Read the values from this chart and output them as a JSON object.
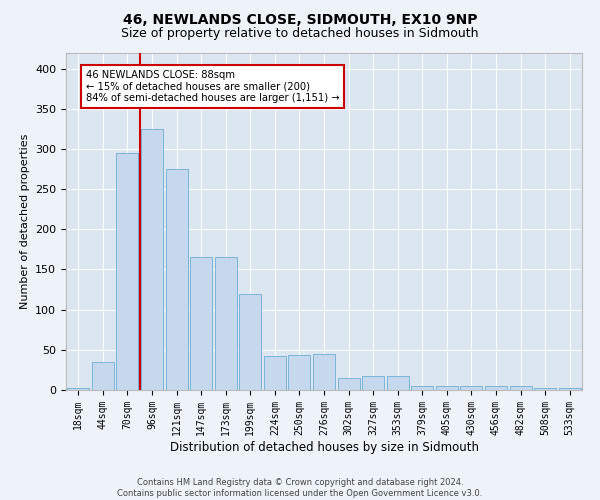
{
  "title": "46, NEWLANDS CLOSE, SIDMOUTH, EX10 9NP",
  "subtitle": "Size of property relative to detached houses in Sidmouth",
  "xlabel": "Distribution of detached houses by size in Sidmouth",
  "ylabel": "Number of detached properties",
  "bar_labels": [
    "18sqm",
    "44sqm",
    "70sqm",
    "96sqm",
    "121sqm",
    "147sqm",
    "173sqm",
    "199sqm",
    "224sqm",
    "250sqm",
    "276sqm",
    "302sqm",
    "327sqm",
    "353sqm",
    "379sqm",
    "405sqm",
    "430sqm",
    "456sqm",
    "482sqm",
    "508sqm",
    "533sqm"
  ],
  "bar_values": [
    3,
    35,
    295,
    325,
    275,
    165,
    165,
    120,
    42,
    43,
    45,
    15,
    17,
    17,
    5,
    5,
    5,
    5,
    5,
    2,
    2
  ],
  "bar_color": "#c5d8ed",
  "bar_edgecolor": "#6baed6",
  "background_color": "#dce6f1",
  "fig_background_color": "#eef2f9",
  "grid_color": "#ffffff",
  "vline_color": "#cc0000",
  "annotation_text": "46 NEWLANDS CLOSE: 88sqm\n← 15% of detached houses are smaller (200)\n84% of semi-detached houses are larger (1,151) →",
  "annotation_box_edgecolor": "#cc0000",
  "annotation_box_facecolor": "#ffffff",
  "ylim": [
    0,
    420
  ],
  "yticks": [
    0,
    50,
    100,
    150,
    200,
    250,
    300,
    350,
    400
  ],
  "footer": "Contains HM Land Registry data © Crown copyright and database right 2024.\nContains public sector information licensed under the Open Government Licence v3.0.",
  "title_fontsize": 10,
  "subtitle_fontsize": 9,
  "xlabel_fontsize": 8.5,
  "ylabel_fontsize": 8,
  "tick_fontsize": 7,
  "footer_fontsize": 6
}
